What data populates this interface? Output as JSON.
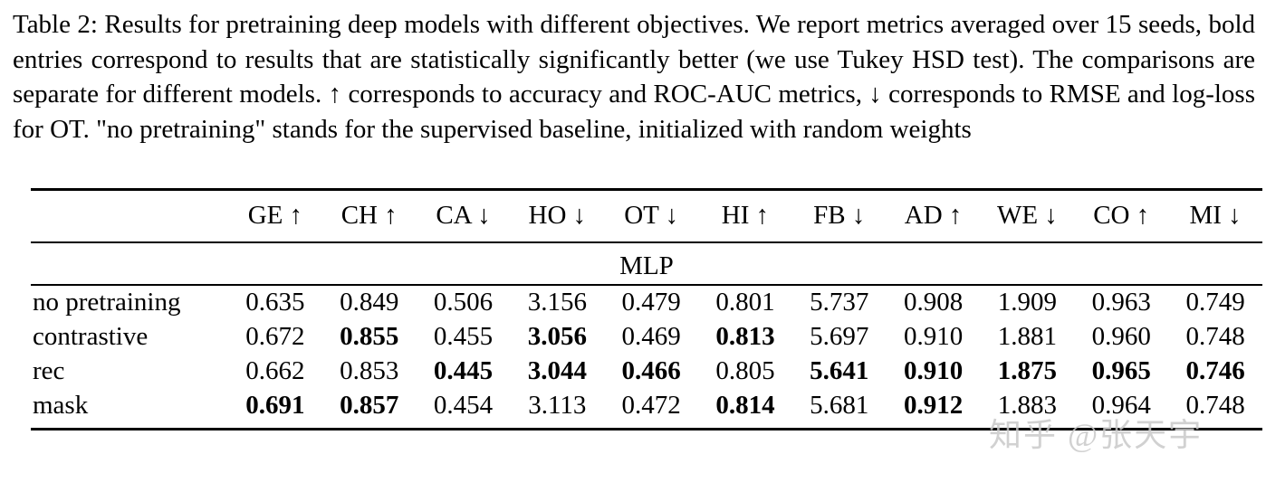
{
  "caption": {
    "text": "Table 2: Results for pretraining deep models with different objectives. We report metrics averaged over 15 seeds, bold entries correspond to results that are statistically significantly better (we use Tukey HSD test). The comparisons are separate for different models. ↑ corresponds to accuracy and ROC-AUC metrics, ↓ corresponds to RMSE and log-loss for OT. \"no pretraining\" stands for the supervised baseline, initialized with random weights"
  },
  "table": {
    "section_label": "MLP",
    "columns": [
      "GE ↑",
      "CH ↑",
      "CA ↓",
      "HO ↓",
      "OT ↓",
      "HI ↑",
      "FB ↓",
      "AD ↑",
      "WE ↓",
      "CO ↑",
      "MI ↓"
    ],
    "rows": [
      {
        "label": "no pretraining",
        "values": [
          "0.635",
          "0.849",
          "0.506",
          "3.156",
          "0.479",
          "0.801",
          "5.737",
          "0.908",
          "1.909",
          "0.963",
          "0.749"
        ],
        "bold": [
          false,
          false,
          false,
          false,
          false,
          false,
          false,
          false,
          false,
          false,
          false
        ]
      },
      {
        "label": "contrastive",
        "values": [
          "0.672",
          "0.855",
          "0.455",
          "3.056",
          "0.469",
          "0.813",
          "5.697",
          "0.910",
          "1.881",
          "0.960",
          "0.748"
        ],
        "bold": [
          false,
          true,
          false,
          true,
          false,
          true,
          false,
          false,
          false,
          false,
          false
        ]
      },
      {
        "label": "rec",
        "values": [
          "0.662",
          "0.853",
          "0.445",
          "3.044",
          "0.466",
          "0.805",
          "5.641",
          "0.910",
          "1.875",
          "0.965",
          "0.746"
        ],
        "bold": [
          false,
          false,
          true,
          true,
          true,
          false,
          true,
          true,
          true,
          true,
          true
        ]
      },
      {
        "label": "mask",
        "values": [
          "0.691",
          "0.857",
          "0.454",
          "3.113",
          "0.472",
          "0.814",
          "5.681",
          "0.912",
          "1.883",
          "0.964",
          "0.748"
        ],
        "bold": [
          true,
          true,
          false,
          false,
          false,
          true,
          false,
          true,
          false,
          false,
          false
        ]
      }
    ]
  },
  "watermark": {
    "text": "知乎 @张天宇"
  }
}
